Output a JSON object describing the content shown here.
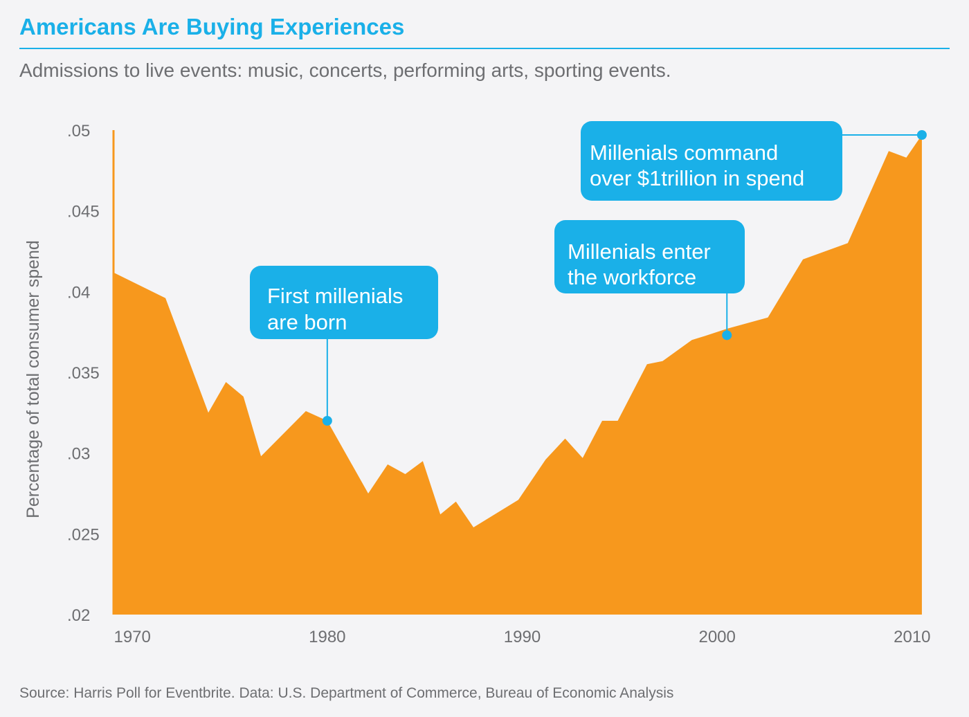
{
  "title": "Americans Are Buying Experiences",
  "subtitle": "Admissions to live events: music, concerts, performing arts, sporting events.",
  "source": "Source: Harris Poll for Eventbrite. Data: U.S. Department of Commerce, Bureau of Economic Analysis",
  "colors": {
    "accent": "#1ab0e8",
    "area": "#f7981d",
    "text": "#6d6e71",
    "background": "#f4f4f6"
  },
  "chart_data": {
    "type": "area",
    "ylabel": "Percentage of total consumer spend",
    "xlabel": "",
    "xlim": [
      1969,
      2011
    ],
    "ylim": [
      0.02,
      0.05
    ],
    "x_ticks": [
      1970,
      1980,
      1990,
      2000,
      2010
    ],
    "y_ticks": [
      0.02,
      0.025,
      0.03,
      0.035,
      0.04,
      0.045,
      0.05
    ],
    "y_tick_labels": [
      ".02",
      ".025",
      ".03",
      ".035",
      ".04",
      ".045",
      ".05"
    ],
    "grid": false,
    "series": [
      {
        "x": [
          1969,
          1971.7,
          1973.9,
          1974.8,
          1975.7,
          1976.6,
          1978.9,
          1980,
          1982.1,
          1983.1,
          1984,
          1984.9,
          1985.8,
          1986.6,
          1987.5,
          1989.8,
          1991.2,
          1992.2,
          1993.1,
          1994.1,
          1994.9,
          1996.4,
          1997.2,
          1998.7,
          1999.5,
          2000.5,
          2002.6,
          2004.4,
          2006.7,
          2008.8,
          2009.7,
          2010.5
        ],
        "y": [
          0.0412,
          0.0396,
          0.0325,
          0.0344,
          0.0335,
          0.0298,
          0.0326,
          0.032,
          0.0275,
          0.0293,
          0.0287,
          0.0295,
          0.0262,
          0.027,
          0.0254,
          0.0271,
          0.0296,
          0.0309,
          0.0297,
          0.032,
          0.032,
          0.0355,
          0.0357,
          0.037,
          0.0373,
          0.0377,
          0.0384,
          0.042,
          0.043,
          0.0487,
          0.0483,
          0.0497
        ]
      }
    ],
    "annotations": [
      {
        "text_lines": [
          "First millenials",
          "are born"
        ],
        "x": 1980,
        "y": 0.032
      },
      {
        "text_lines": [
          "Millenials enter",
          "the workforce"
        ],
        "x": 2000.5,
        "y": 0.0373
      },
      {
        "text_lines": [
          "Millenials command",
          "over $1trillion in spend"
        ],
        "x": 2010.5,
        "y": 0.0497
      }
    ]
  }
}
